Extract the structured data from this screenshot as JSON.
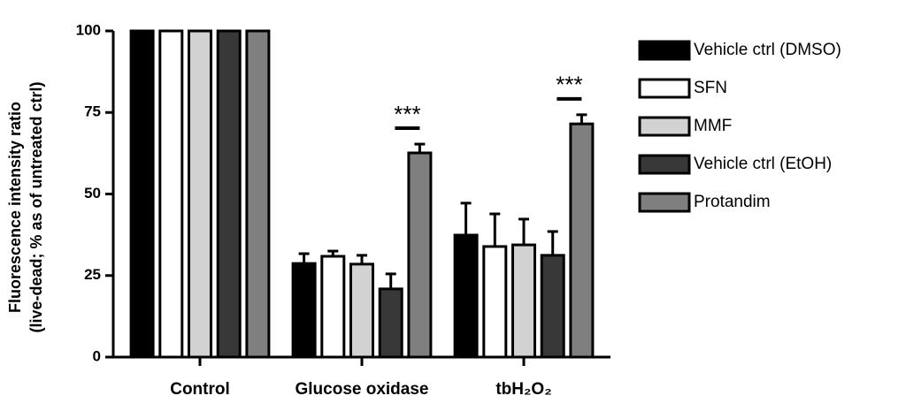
{
  "chart_data": {
    "type": "bar",
    "y_label_lines": [
      "Fluorescence intensity ratio",
      "(live-dead; % as of untreated ctrl)"
    ],
    "categories": [
      "Control",
      "Glucose oxidase",
      "tbH₂O₂"
    ],
    "significance": [
      null,
      "***",
      "***"
    ],
    "series": [
      {
        "name": "Vehicle ctrl (DMSO)",
        "color": "#000000",
        "values": [
          100,
          28.7,
          37.4
        ],
        "errors": [
          null,
          3,
          9.8
        ]
      },
      {
        "name": "SFN",
        "color": "#ffffff",
        "values": [
          100,
          30.9,
          33.9
        ],
        "errors": [
          null,
          1.6,
          10
        ]
      },
      {
        "name": "MMF",
        "color": "#d2d2d2",
        "values": [
          100,
          28.5,
          34.4
        ],
        "errors": [
          null,
          2.7,
          7.9
        ]
      },
      {
        "name": "Vehicle ctrl (EtOH)",
        "color": "#383838",
        "values": [
          100,
          20.9,
          31.2
        ],
        "errors": [
          null,
          4.6,
          7.3
        ]
      },
      {
        "name": "Protandim",
        "color": "#7f7f7f",
        "values": [
          100,
          62.6,
          71.5
        ],
        "errors": [
          null,
          2.7,
          2.8
        ]
      }
    ],
    "ylim": [
      0,
      100
    ],
    "yticks": [
      0,
      25,
      50,
      75,
      100
    ],
    "legend": "right"
  }
}
